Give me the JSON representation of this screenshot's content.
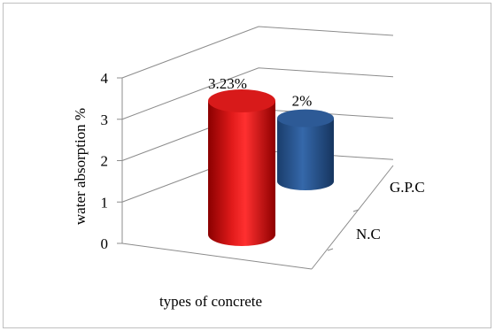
{
  "chart_data": {
    "type": "bar",
    "style": "3d-cylinder",
    "title": "",
    "xlabel": "types of concrete",
    "ylabel": "water absorption %",
    "ylim": [
      0,
      4
    ],
    "yticks": [
      "0",
      "1",
      "2",
      "3",
      "4"
    ],
    "grid": true,
    "legend": "none",
    "categories": [
      "N.C",
      "G.P.C"
    ],
    "values": [
      3.23,
      2
    ],
    "data_labels": [
      "3.23%",
      "2%"
    ],
    "colors": [
      "#d40d0d",
      "#2f5e9c"
    ]
  }
}
